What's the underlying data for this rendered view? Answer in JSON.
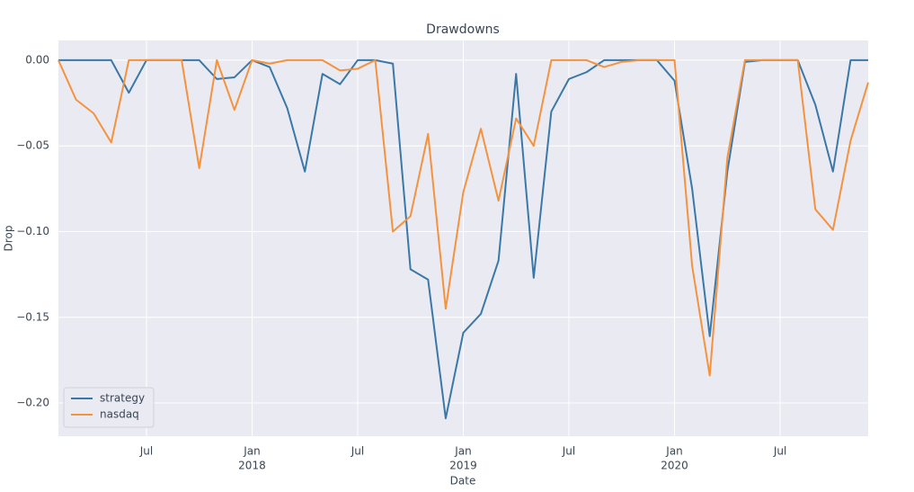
{
  "chart_data": {
    "type": "line",
    "title": "Drawdowns",
    "xlabel": "Date",
    "ylabel": "Drop",
    "x": [
      "2017-02",
      "2017-03",
      "2017-04",
      "2017-05",
      "2017-06",
      "2017-07",
      "2017-08",
      "2017-09",
      "2017-10",
      "2017-11",
      "2017-12",
      "2018-01",
      "2018-02",
      "2018-03",
      "2018-04",
      "2018-05",
      "2018-06",
      "2018-07",
      "2018-08",
      "2018-09",
      "2018-10",
      "2018-11",
      "2018-12",
      "2019-01",
      "2019-02",
      "2019-03",
      "2019-04",
      "2019-05",
      "2019-06",
      "2019-07",
      "2019-08",
      "2019-09",
      "2019-10",
      "2019-11",
      "2019-12",
      "2020-01",
      "2020-02",
      "2020-03",
      "2020-04",
      "2020-05",
      "2020-06",
      "2020-07",
      "2020-08",
      "2020-09",
      "2020-10",
      "2020-11",
      "2020-12"
    ],
    "series": [
      {
        "name": "strategy",
        "color": "#3a78a8",
        "values": [
          0,
          0,
          0,
          0,
          -0.019,
          0,
          0,
          0,
          0,
          -0.011,
          -0.01,
          0,
          -0.004,
          -0.028,
          -0.065,
          -0.008,
          -0.014,
          0,
          0,
          -0.002,
          -0.122,
          -0.128,
          -0.209,
          -0.159,
          -0.148,
          -0.117,
          -0.008,
          -0.127,
          -0.03,
          -0.011,
          -0.007,
          0,
          0,
          0,
          0,
          -0.012,
          -0.075,
          -0.161,
          -0.065,
          -0.001,
          0,
          0,
          0,
          -0.026,
          -0.065,
          0,
          0
        ]
      },
      {
        "name": "nasdaq",
        "color": "#f5923e",
        "values": [
          0,
          -0.023,
          -0.031,
          -0.048,
          0,
          0,
          0,
          0,
          -0.063,
          0,
          -0.029,
          0,
          -0.002,
          0,
          0,
          0,
          -0.006,
          -0.005,
          0,
          -0.1,
          -0.091,
          -0.043,
          -0.145,
          -0.077,
          -0.04,
          -0.082,
          -0.034,
          -0.05,
          0,
          0,
          0,
          -0.004,
          -0.001,
          0,
          0,
          0,
          -0.12,
          -0.184,
          -0.057,
          0,
          0,
          0,
          0,
          -0.087,
          -0.099,
          -0.047,
          -0.013
        ]
      }
    ],
    "xlim": [
      "2017-02",
      "2020-12"
    ],
    "xticks": [
      {
        "value": "2017-07",
        "label": "Jul"
      },
      {
        "value": "2018-01",
        "label": "Jan",
        "year": "2018"
      },
      {
        "value": "2018-07",
        "label": "Jul"
      },
      {
        "value": "2019-01",
        "label": "Jan",
        "year": "2019"
      },
      {
        "value": "2019-07",
        "label": "Jul"
      },
      {
        "value": "2020-01",
        "label": "Jan",
        "year": "2020"
      },
      {
        "value": "2020-07",
        "label": "Jul"
      }
    ],
    "ylim": [
      -0.2194,
      0.0115
    ],
    "yticks": [
      {
        "value": 0,
        "label": "0.00"
      },
      {
        "value": -0.05,
        "label": "−0.05"
      },
      {
        "value": -0.1,
        "label": "−0.10"
      },
      {
        "value": -0.15,
        "label": "−0.15"
      },
      {
        "value": -0.2,
        "label": "−0.20"
      }
    ],
    "grid": true,
    "legend": "lower left"
  }
}
